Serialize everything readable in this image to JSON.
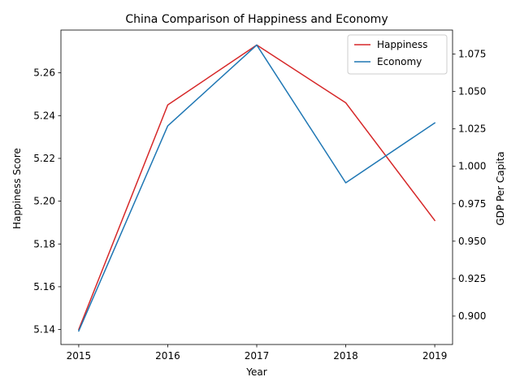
{
  "chart_data": {
    "type": "line",
    "title": "China Comparison of Happiness and Economy",
    "xlabel": "Year",
    "ylabel_left": "Happiness Score",
    "ylabel_right": "GDP Per Capita",
    "x": [
      "2015",
      "2016",
      "2017",
      "2018",
      "2019"
    ],
    "series": [
      {
        "name": "Happiness",
        "axis": "left",
        "color": "#d62728",
        "values": [
          5.14,
          5.245,
          5.273,
          5.246,
          5.191
        ]
      },
      {
        "name": "Economy",
        "axis": "right",
        "color": "#1f77b4",
        "values": [
          0.89,
          1.027,
          1.081,
          0.989,
          1.029
        ]
      }
    ],
    "ylim_left": [
      5.133,
      5.28
    ],
    "ylim_right": [
      0.881,
      1.091
    ],
    "yticks_left": [
      "5.14",
      "5.16",
      "5.18",
      "5.20",
      "5.22",
      "5.24",
      "5.26"
    ],
    "yticks_right": [
      "0.900",
      "0.925",
      "0.950",
      "0.975",
      "1.000",
      "1.025",
      "1.050",
      "1.075"
    ],
    "grid": false,
    "legend_position": "top-right"
  }
}
